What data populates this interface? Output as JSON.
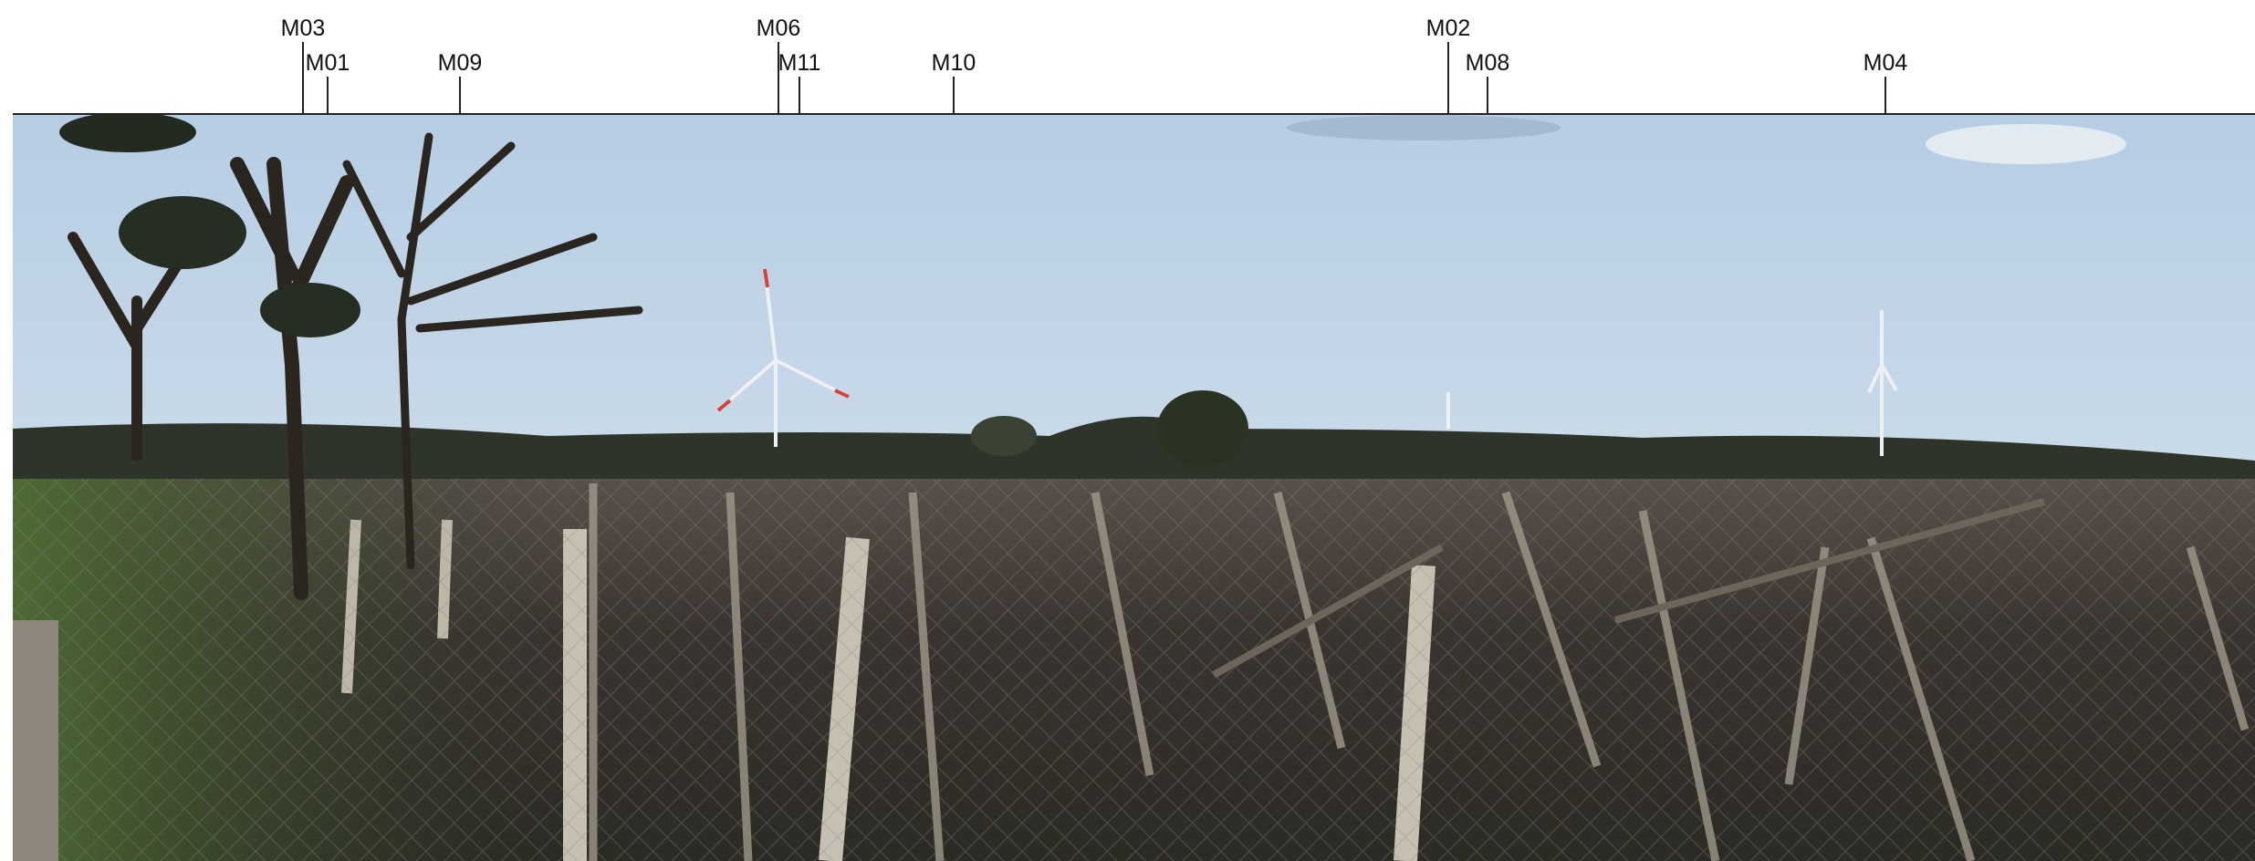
{
  "markers": [
    {
      "label": "M03"
    },
    {
      "label": "M01"
    },
    {
      "label": "M09"
    },
    {
      "label": "M06"
    },
    {
      "label": "M11"
    },
    {
      "label": "M10"
    },
    {
      "label": "M02"
    },
    {
      "label": "M08"
    },
    {
      "label": "M04"
    }
  ]
}
